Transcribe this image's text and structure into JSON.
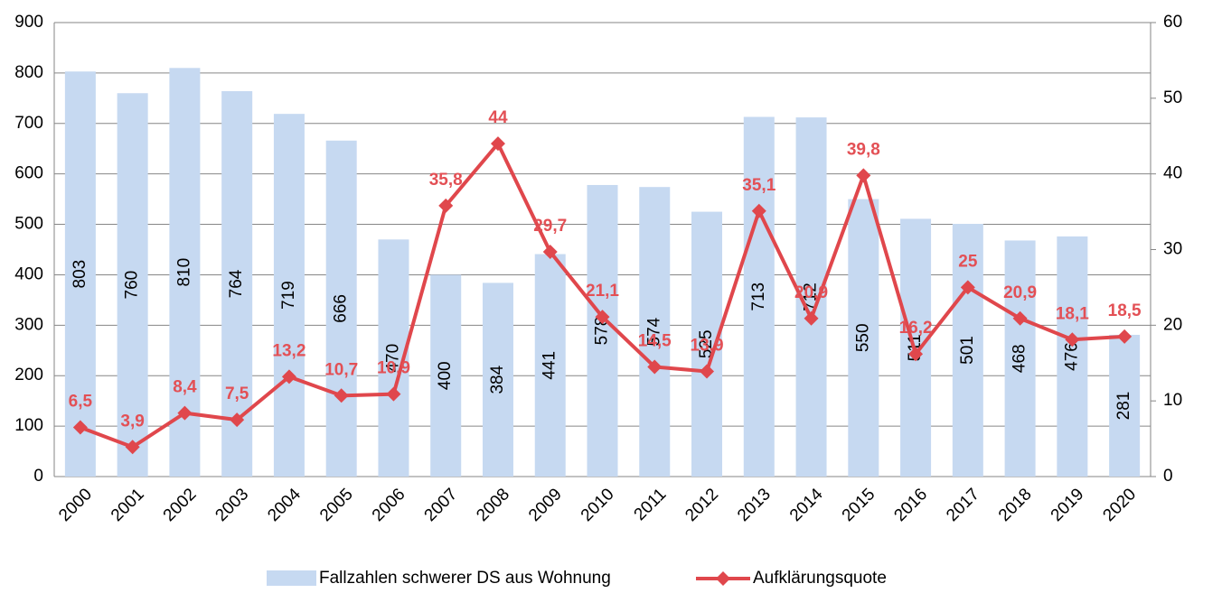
{
  "chart_data": {
    "type": "bar-line",
    "categories": [
      "2000",
      "2001",
      "2002",
      "2003",
      "2004",
      "2005",
      "2006",
      "2007",
      "2008",
      "2009",
      "2010",
      "2011",
      "2012",
      "2013",
      "2014",
      "2015",
      "2016",
      "2017",
      "2018",
      "2019",
      "2020"
    ],
    "series": [
      {
        "name": "Fallzahlen schwerer DS aus Wohnung",
        "type": "bar",
        "color": "#c6d9f1",
        "values": [
          803,
          760,
          810,
          764,
          719,
          666,
          470,
          400,
          384,
          441,
          578,
          574,
          525,
          713,
          712,
          550,
          511,
          501,
          468,
          476,
          281
        ]
      },
      {
        "name": "Aufklärungsquote",
        "type": "line",
        "axis": "y2",
        "color": "#e0474c",
        "values": [
          6.5,
          3.9,
          8.4,
          7.5,
          13.2,
          10.7,
          10.9,
          35.8,
          44,
          29.7,
          21.1,
          14.5,
          13.9,
          35.1,
          20.9,
          39.8,
          16.2,
          25,
          20.9,
          18.1,
          18.5
        ],
        "value_labels": [
          "6,5",
          "3,9",
          "8,4",
          "7,5",
          "13,2",
          "10,7",
          "10,9",
          "35,8",
          "44",
          "29,7",
          "21,1",
          "14,5",
          "13,9",
          "35,1",
          "20,9",
          "39,8",
          "16,2",
          "25",
          "20,9",
          "18,1",
          "18,5"
        ]
      }
    ],
    "ylim": [
      0,
      900
    ],
    "yticks": [
      0,
      100,
      200,
      300,
      400,
      500,
      600,
      700,
      800,
      900
    ],
    "y2lim": [
      0,
      60
    ],
    "y2ticks": [
      0,
      10,
      20,
      30,
      40,
      50,
      60
    ],
    "grid": true,
    "legend": "bottom"
  }
}
